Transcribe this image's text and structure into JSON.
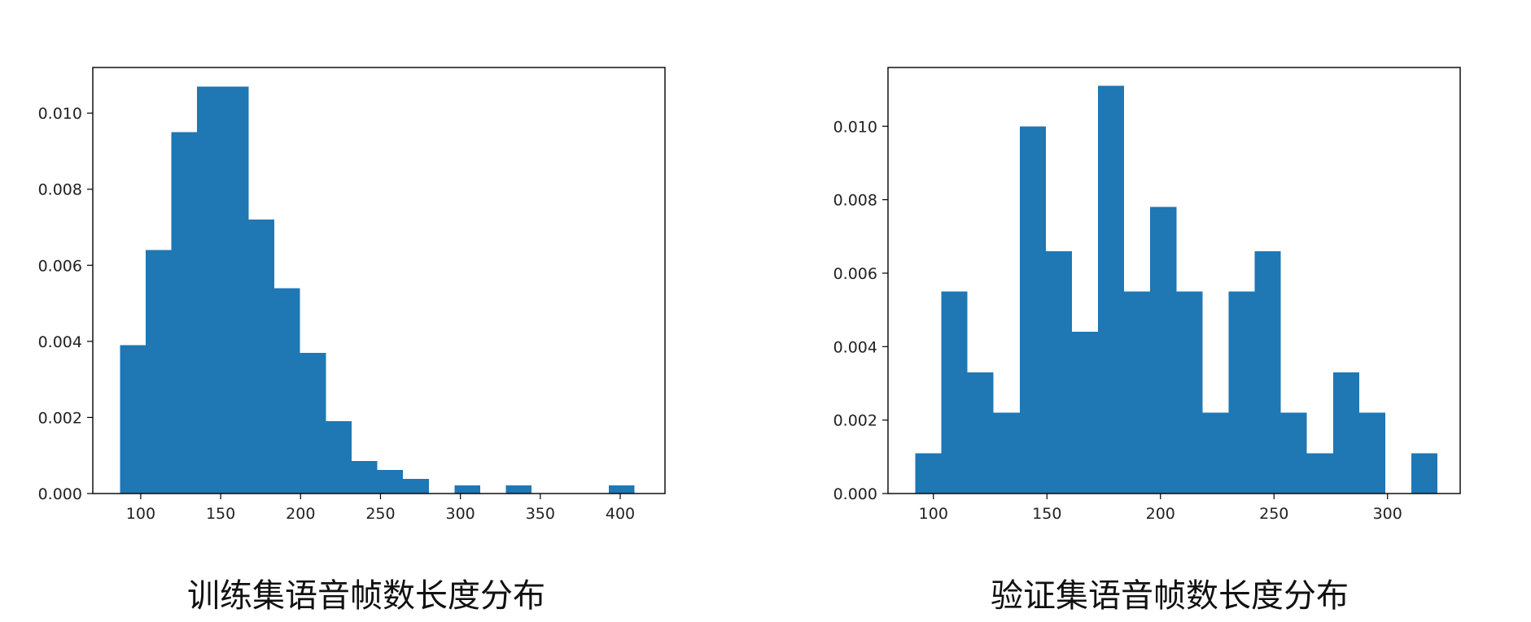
{
  "chart_data": [
    {
      "type": "bar",
      "caption": "训练集语音帧数长度分布",
      "bar_color": "#1f77b4",
      "bin_start": 87,
      "bin_width": 16.1,
      "values": [
        0.0039,
        0.0064,
        0.0095,
        0.0107,
        0.0107,
        0.0072,
        0.0054,
        0.0037,
        0.0019,
        0.00085,
        0.00062,
        0.00039,
        0,
        0.00021,
        0,
        0.00021,
        0,
        0,
        0,
        0.00021
      ],
      "xlim": [
        70,
        428
      ],
      "ylim": [
        0,
        0.0112
      ],
      "xticks": [
        100,
        150,
        200,
        250,
        300,
        350,
        400
      ],
      "yticks": [
        0.0,
        0.002,
        0.004,
        0.006,
        0.008,
        0.01
      ],
      "xtick_labels": [
        "100",
        "150",
        "200",
        "250",
        "300",
        "350",
        "400"
      ],
      "ytick_labels": [
        "0.000",
        "0.002",
        "0.004",
        "0.006",
        "0.008",
        "0.010"
      ]
    },
    {
      "type": "bar",
      "caption": "验证集语音帧数长度分布",
      "bar_color": "#1f77b4",
      "bin_start": 92,
      "bin_width": 11.5,
      "values": [
        0.0011,
        0.0055,
        0.0033,
        0.0022,
        0.01,
        0.0066,
        0.0044,
        0.0111,
        0.0055,
        0.0078,
        0.0055,
        0.0022,
        0.0055,
        0.0066,
        0.0022,
        0.0011,
        0.0033,
        0.0022,
        0,
        0.0011
      ],
      "xlim": [
        80,
        332
      ],
      "ylim": [
        0,
        0.0116
      ],
      "xticks": [
        100,
        150,
        200,
        250,
        300
      ],
      "yticks": [
        0.0,
        0.002,
        0.004,
        0.006,
        0.008,
        0.01
      ],
      "xtick_labels": [
        "100",
        "150",
        "200",
        "250",
        "300"
      ],
      "ytick_labels": [
        "0.000",
        "0.002",
        "0.004",
        "0.006",
        "0.008",
        "0.010"
      ]
    }
  ]
}
